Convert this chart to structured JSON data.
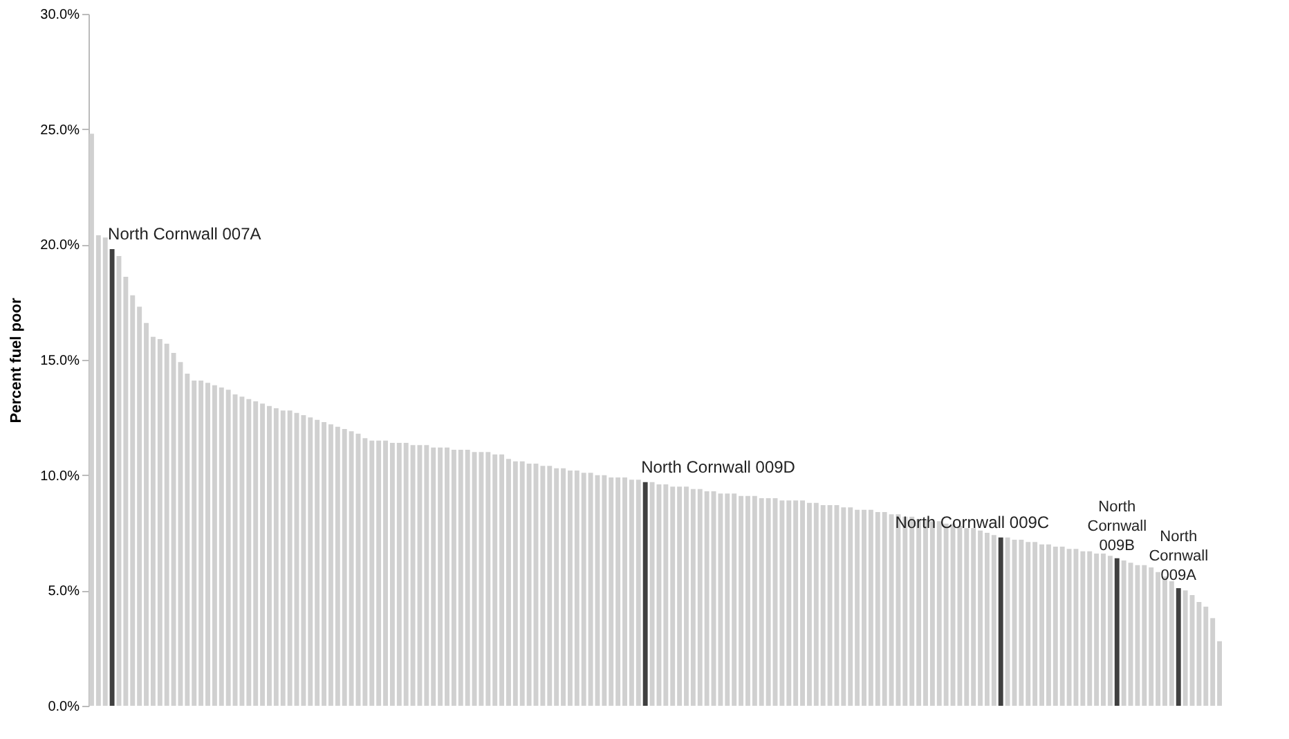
{
  "chart_data": {
    "type": "bar",
    "ylabel": "Percent fuel poor",
    "categories": [
      null,
      null,
      null,
      null,
      null,
      null,
      null,
      null,
      null,
      null,
      null,
      null,
      null,
      null,
      null,
      null,
      null,
      null,
      null,
      null,
      null,
      null,
      null,
      null,
      null,
      null,
      null,
      null,
      null,
      null,
      null,
      null,
      null,
      null,
      null,
      null,
      null,
      null,
      null,
      null,
      null,
      null,
      null,
      null,
      null,
      null,
      null,
      null,
      null,
      null,
      null,
      null,
      null,
      null,
      null,
      null,
      null,
      null,
      null,
      null,
      null,
      null,
      null,
      null,
      null,
      null,
      null,
      null,
      null,
      null,
      null,
      null,
      null,
      null,
      null,
      null,
      null,
      null,
      null,
      null,
      null,
      null,
      null,
      null,
      null,
      null,
      null,
      null,
      null,
      null,
      null,
      null,
      null,
      null,
      null,
      null,
      null,
      null,
      null,
      null,
      null,
      null,
      null,
      null,
      null,
      null,
      null,
      null,
      null,
      null,
      null,
      null,
      null,
      null,
      null,
      null,
      null,
      null,
      null,
      null,
      null,
      null,
      null,
      null,
      null,
      null,
      null,
      null,
      null,
      null,
      null,
      null,
      null,
      null,
      null,
      null,
      null,
      null,
      null,
      null,
      null,
      null,
      null,
      null,
      null,
      null,
      null,
      null,
      null,
      null,
      null,
      null,
      null,
      null,
      null,
      null,
      null,
      null,
      null,
      null,
      null,
      null,
      null,
      null,
      null,
      null
    ],
    "values": [
      24.8,
      20.4,
      20.3,
      19.8,
      19.5,
      18.6,
      17.8,
      17.3,
      16.6,
      16.0,
      15.9,
      15.7,
      15.3,
      14.9,
      14.4,
      14.1,
      14.1,
      14.0,
      13.9,
      13.8,
      13.7,
      13.5,
      13.4,
      13.3,
      13.2,
      13.1,
      13.0,
      12.9,
      12.8,
      12.8,
      12.7,
      12.6,
      12.5,
      12.4,
      12.3,
      12.2,
      12.1,
      12.0,
      11.9,
      11.8,
      11.6,
      11.5,
      11.5,
      11.5,
      11.4,
      11.4,
      11.4,
      11.3,
      11.3,
      11.3,
      11.2,
      11.2,
      11.2,
      11.1,
      11.1,
      11.1,
      11.0,
      11.0,
      11.0,
      10.9,
      10.9,
      10.7,
      10.6,
      10.6,
      10.5,
      10.5,
      10.4,
      10.4,
      10.3,
      10.3,
      10.2,
      10.2,
      10.1,
      10.1,
      10.0,
      10.0,
      9.9,
      9.9,
      9.9,
      9.8,
      9.8,
      9.7,
      9.7,
      9.6,
      9.6,
      9.5,
      9.5,
      9.5,
      9.4,
      9.4,
      9.3,
      9.3,
      9.2,
      9.2,
      9.2,
      9.1,
      9.1,
      9.1,
      9.0,
      9.0,
      9.0,
      8.9,
      8.9,
      8.9,
      8.9,
      8.8,
      8.8,
      8.7,
      8.7,
      8.7,
      8.6,
      8.6,
      8.5,
      8.5,
      8.5,
      8.4,
      8.4,
      8.3,
      8.3,
      8.2,
      8.2,
      8.1,
      8.1,
      8.0,
      8.0,
      7.9,
      7.9,
      7.8,
      7.7,
      7.7,
      7.6,
      7.5,
      7.4,
      7.3,
      7.3,
      7.2,
      7.2,
      7.1,
      7.1,
      7.0,
      7.0,
      6.9,
      6.9,
      6.8,
      6.8,
      6.7,
      6.7,
      6.6,
      6.6,
      6.5,
      6.4,
      6.3,
      6.2,
      6.1,
      6.1,
      6.0,
      5.8,
      5.6,
      5.4,
      5.1,
      5.0,
      4.8,
      4.5,
      4.3,
      3.8,
      2.8
    ],
    "colors": [
      "#d0d0d0",
      "#d0d0d0",
      "#d0d0d0",
      "#404040",
      "#d0d0d0",
      "#d0d0d0",
      "#d0d0d0",
      "#d0d0d0",
      "#d0d0d0",
      "#d0d0d0",
      "#d0d0d0",
      "#d0d0d0",
      "#d0d0d0",
      "#d0d0d0",
      "#d0d0d0",
      "#d0d0d0",
      "#d0d0d0",
      "#d0d0d0",
      "#d0d0d0",
      "#d0d0d0",
      "#d0d0d0",
      "#d0d0d0",
      "#d0d0d0",
      "#d0d0d0",
      "#d0d0d0",
      "#d0d0d0",
      "#d0d0d0",
      "#d0d0d0",
      "#d0d0d0",
      "#d0d0d0",
      "#d0d0d0",
      "#d0d0d0",
      "#d0d0d0",
      "#d0d0d0",
      "#d0d0d0",
      "#d0d0d0",
      "#d0d0d0",
      "#d0d0d0",
      "#d0d0d0",
      "#d0d0d0",
      "#d0d0d0",
      "#d0d0d0",
      "#d0d0d0",
      "#d0d0d0",
      "#d0d0d0",
      "#d0d0d0",
      "#d0d0d0",
      "#d0d0d0",
      "#d0d0d0",
      "#d0d0d0",
      "#d0d0d0",
      "#d0d0d0",
      "#d0d0d0",
      "#d0d0d0",
      "#d0d0d0",
      "#d0d0d0",
      "#d0d0d0",
      "#d0d0d0",
      "#d0d0d0",
      "#d0d0d0",
      "#d0d0d0",
      "#d0d0d0",
      "#d0d0d0",
      "#d0d0d0",
      "#d0d0d0",
      "#d0d0d0",
      "#d0d0d0",
      "#d0d0d0",
      "#d0d0d0",
      "#d0d0d0",
      "#d0d0d0",
      "#d0d0d0",
      "#d0d0d0",
      "#d0d0d0",
      "#d0d0d0",
      "#d0d0d0",
      "#d0d0d0",
      "#d0d0d0",
      "#d0d0d0",
      "#d0d0d0",
      "#d0d0d0",
      "#404040",
      "#d0d0d0",
      "#d0d0d0",
      "#d0d0d0",
      "#d0d0d0",
      "#d0d0d0",
      "#d0d0d0",
      "#d0d0d0",
      "#d0d0d0",
      "#d0d0d0",
      "#d0d0d0",
      "#d0d0d0",
      "#d0d0d0",
      "#d0d0d0",
      "#d0d0d0",
      "#d0d0d0",
      "#d0d0d0",
      "#d0d0d0",
      "#d0d0d0",
      "#d0d0d0",
      "#d0d0d0",
      "#d0d0d0",
      "#d0d0d0",
      "#d0d0d0",
      "#d0d0d0",
      "#d0d0d0",
      "#d0d0d0",
      "#d0d0d0",
      "#d0d0d0",
      "#d0d0d0",
      "#d0d0d0",
      "#d0d0d0",
      "#d0d0d0",
      "#d0d0d0",
      "#d0d0d0",
      "#d0d0d0",
      "#d0d0d0",
      "#d0d0d0",
      "#d0d0d0",
      "#d0d0d0",
      "#d0d0d0",
      "#d0d0d0",
      "#d0d0d0",
      "#d0d0d0",
      "#d0d0d0",
      "#d0d0d0",
      "#d0d0d0",
      "#d0d0d0",
      "#d0d0d0",
      "#d0d0d0",
      "#d0d0d0",
      "#d0d0d0",
      "#404040",
      "#d0d0d0",
      "#d0d0d0",
      "#d0d0d0",
      "#d0d0d0",
      "#d0d0d0",
      "#d0d0d0",
      "#d0d0d0",
      "#d0d0d0",
      "#d0d0d0",
      "#d0d0d0",
      "#d0d0d0",
      "#d0d0d0",
      "#d0d0d0",
      "#d0d0d0",
      "#d0d0d0",
      "#d0d0d0",
      "#404040",
      "#d0d0d0",
      "#d0d0d0",
      "#d0d0d0",
      "#d0d0d0",
      "#d0d0d0",
      "#d0d0d0",
      "#d0d0d0",
      "#d0d0d0",
      "#404040",
      "#d0d0d0",
      "#d0d0d0",
      "#d0d0d0",
      "#d0d0d0",
      "#d0d0d0",
      "#d0d0d0"
    ],
    "ylim": [
      0,
      30
    ],
    "yticks": [
      {
        "value": 0,
        "label": "0.0%"
      },
      {
        "value": 5,
        "label": "5.0%"
      },
      {
        "value": 10,
        "label": "10.0%"
      },
      {
        "value": 15,
        "label": "15.0%"
      },
      {
        "value": 20,
        "label": "20.0%"
      },
      {
        "value": 25,
        "label": "25.0%"
      },
      {
        "value": 30,
        "label": "30.0%"
      }
    ],
    "annotations": [
      "North Cornwall 007A",
      "North Cornwall 009D",
      "North Cornwall 009C",
      "North\nCornwall\n009B",
      "North\nCornwall\n009A"
    ],
    "tick_labels": "y",
    "grid": false
  }
}
